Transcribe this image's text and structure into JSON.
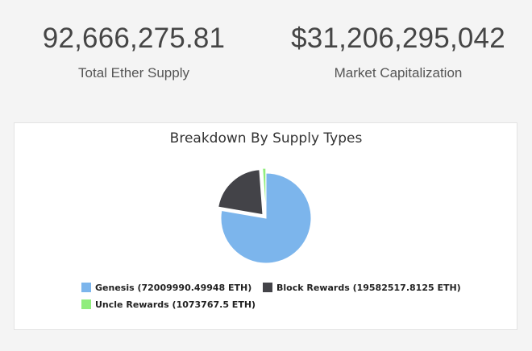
{
  "stats": {
    "supply_value": "92,666,275.81",
    "supply_label": "Total Ether Supply",
    "market_cap_value": "$31,206,295,042",
    "market_cap_label": "Market Capitalization"
  },
  "colors": {
    "genesis": "#7cb5ec",
    "block_rewards": "#434348",
    "uncle_rewards": "#90ed7d"
  },
  "chart_data": {
    "type": "pie",
    "title": "Breakdown By Supply Types",
    "legend_position": "bottom",
    "slices": [
      {
        "label": "Genesis (72009990.49948 ETH)",
        "value": 72009990.49948,
        "color": "#7cb5ec",
        "exploded": false
      },
      {
        "label": "Block Rewards (19582517.8125 ETH)",
        "value": 19582517.8125,
        "color": "#434348",
        "exploded": true
      },
      {
        "label": "Uncle Rewards (1073767.5 ETH)",
        "value": 1073767.5,
        "color": "#90ed7d",
        "exploded": true
      }
    ]
  }
}
